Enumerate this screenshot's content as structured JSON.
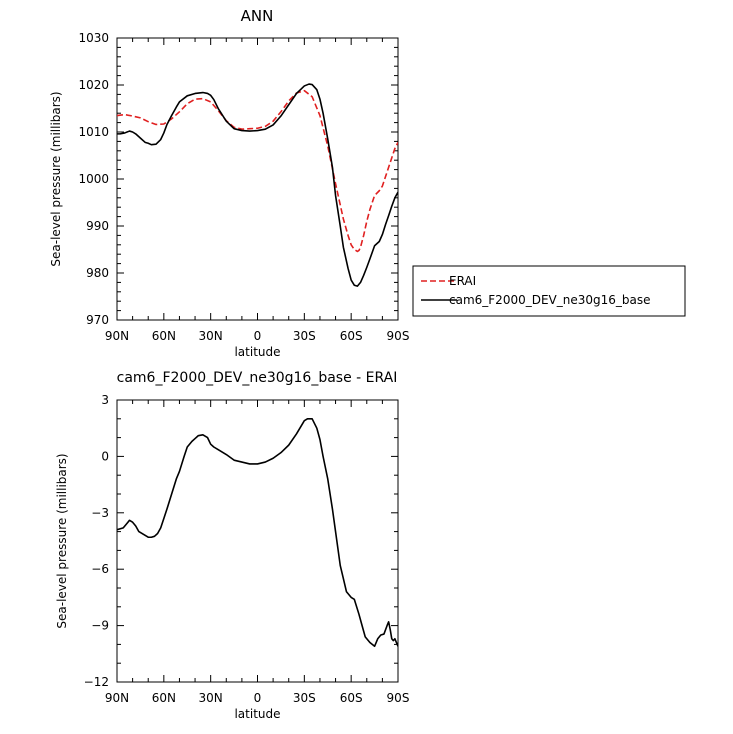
{
  "chart_data": [
    {
      "type": "line",
      "title": "ANN",
      "xlabel": "latitude",
      "ylabel": "Sea-level pressure (millibars)",
      "xlim": [
        90,
        -90
      ],
      "ylim": [
        970,
        1030
      ],
      "xticks": [
        "90N",
        "60N",
        "30N",
        "0",
        "30S",
        "60S",
        "90S"
      ],
      "yticks": [
        "970",
        "980",
        "990",
        "1000",
        "1010",
        "1020",
        "1030"
      ],
      "legend_position": "right",
      "series": [
        {
          "name": "ERAI",
          "color": "#e02020",
          "dash": "dashed",
          "x": [
            90,
            85,
            80,
            75,
            70,
            65,
            60,
            55,
            50,
            45,
            40,
            35,
            30,
            25,
            20,
            15,
            10,
            5,
            0,
            -5,
            -10,
            -15,
            -20,
            -25,
            -30,
            -35,
            -40,
            -45,
            -50,
            -55,
            -58,
            -60,
            -62,
            -64,
            -65,
            -66,
            -68,
            -70,
            -72,
            -75,
            -78,
            -80,
            -82,
            -84,
            -86,
            -88,
            -90
          ],
          "y": [
            1013.5,
            1013.7,
            1013.4,
            1013.0,
            1012.2,
            1011.6,
            1011.7,
            1012.8,
            1014.3,
            1016.0,
            1017.0,
            1017.1,
            1016.4,
            1014.5,
            1012.4,
            1011.0,
            1010.6,
            1010.7,
            1010.8,
            1011.2,
            1012.3,
            1014.3,
            1016.6,
            1018.3,
            1018.8,
            1017.5,
            1013.5,
            1007.0,
            999.0,
            991.5,
            988.0,
            986.0,
            985.0,
            984.6,
            984.8,
            985.5,
            988.0,
            991.0,
            993.5,
            996.5,
            997.5,
            998.5,
            1000.5,
            1002.5,
            1004.5,
            1006.5,
            1007.8
          ]
        },
        {
          "name": "cam6_F2000_DEV_ne30g16_base",
          "color": "#000000",
          "dash": "solid",
          "x": [
            90,
            88,
            85,
            82,
            80,
            78,
            75,
            72,
            70,
            68,
            65,
            62,
            60,
            58,
            55,
            52,
            50,
            45,
            40,
            35,
            32,
            30,
            28,
            25,
            20,
            15,
            10,
            5,
            0,
            -5,
            -10,
            -15,
            -20,
            -25,
            -30,
            -33,
            -35,
            -38,
            -40,
            -42,
            -45,
            -48,
            -50,
            -53,
            -55,
            -58,
            -60,
            -62,
            -64,
            -66,
            -68,
            -70,
            -72,
            -75,
            -78,
            -80,
            -82,
            -84,
            -86,
            -88,
            -90
          ],
          "y": [
            1009.6,
            1009.6,
            1009.8,
            1010.2,
            1010.0,
            1009.6,
            1008.7,
            1007.8,
            1007.6,
            1007.3,
            1007.4,
            1008.4,
            1009.8,
            1011.6,
            1013.5,
            1015.3,
            1016.4,
            1017.7,
            1018.2,
            1018.4,
            1018.2,
            1017.8,
            1016.9,
            1014.9,
            1012.3,
            1010.7,
            1010.3,
            1010.2,
            1010.3,
            1010.6,
            1011.5,
            1013.4,
            1015.8,
            1018.2,
            1019.8,
            1020.2,
            1020.1,
            1019.0,
            1017.0,
            1014.0,
            1008.5,
            1002.5,
            996.5,
            990.0,
            985.5,
            981.0,
            978.5,
            977.4,
            977.2,
            978.0,
            979.5,
            981.2,
            983.0,
            985.8,
            986.7,
            988.2,
            990.3,
            992.2,
            994.2,
            996.0,
            997.2
          ]
        }
      ]
    },
    {
      "type": "line",
      "title": "cam6_F2000_DEV_ne30g16_base - ERAI",
      "xlabel": "latitude",
      "ylabel": "Sea-level pressure (millibars)",
      "xlim": [
        90,
        -90
      ],
      "ylim": [
        -12,
        3
      ],
      "xticks": [
        "90N",
        "60N",
        "30N",
        "0",
        "30S",
        "60S",
        "90S"
      ],
      "yticks": [
        "3",
        "0",
        "-3",
        "-6",
        "-9",
        "-12"
      ],
      "series": [
        {
          "color": "#000000",
          "dash": "solid",
          "x": [
            90,
            86,
            84,
            82,
            80,
            78,
            76,
            72,
            70,
            68,
            66,
            64,
            62,
            60,
            58,
            55,
            52,
            50,
            47,
            45,
            42,
            40,
            38,
            35,
            32,
            30,
            28,
            25,
            20,
            15,
            10,
            5,
            0,
            -5,
            -10,
            -15,
            -20,
            -25,
            -30,
            -32,
            -35,
            -38,
            -40,
            -42,
            -45,
            -48,
            -50,
            -53,
            -55,
            -57,
            -60,
            -62,
            -65,
            -67,
            -69,
            -72,
            -75,
            -77,
            -79,
            -81,
            -83,
            -84,
            -85,
            -86,
            -87,
            -88,
            -89,
            -90
          ],
          "y": [
            -3.9,
            -3.8,
            -3.6,
            -3.4,
            -3.5,
            -3.7,
            -4.0,
            -4.2,
            -4.3,
            -4.3,
            -4.25,
            -4.1,
            -3.8,
            -3.3,
            -2.8,
            -2.0,
            -1.2,
            -0.8,
            0.0,
            0.5,
            0.8,
            0.95,
            1.1,
            1.15,
            1.0,
            0.65,
            0.5,
            0.35,
            0.1,
            -0.2,
            -0.3,
            -0.4,
            -0.4,
            -0.3,
            -0.1,
            0.2,
            0.6,
            1.2,
            1.9,
            2.0,
            2.0,
            1.5,
            0.9,
            0.0,
            -1.2,
            -2.8,
            -4.0,
            -5.8,
            -6.5,
            -7.2,
            -7.5,
            -7.6,
            -8.4,
            -9.0,
            -9.6,
            -9.9,
            -10.1,
            -9.7,
            -9.5,
            -9.45,
            -9.0,
            -8.8,
            -9.2,
            -9.7,
            -9.8,
            -9.7,
            -9.9,
            -10.1
          ]
        }
      ]
    }
  ]
}
